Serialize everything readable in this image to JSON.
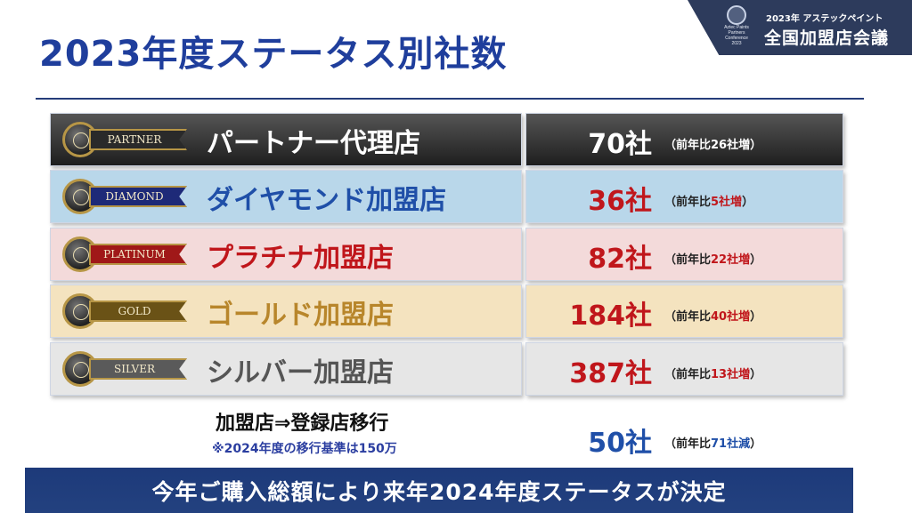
{
  "header": {
    "logo_lines": [
      "Aztec Paints",
      "Partners Conference",
      "2023"
    ],
    "subtitle": "2023年 アステックペイント",
    "event_title": "全国加盟店会議"
  },
  "title": "2023年度ステータス別社数",
  "rows": [
    {
      "badge": "PARTNER",
      "label": "パートナー代理店",
      "count": "70社",
      "note_prefix": "（前年比",
      "note_change": "26社増",
      "note_suffix": "）",
      "colors": {
        "left_bg": "#3a3a3a",
        "right_bg": "#3a3a3a",
        "label": "#ffffff",
        "count": "#ffffff",
        "note": "#ffffff",
        "note_change": "#ffffff",
        "plate_bg": "#2a2a2a"
      }
    },
    {
      "badge": "DIAMOND",
      "label": "ダイヤモンド加盟店",
      "count": "36社",
      "note_prefix": "（前年比",
      "note_change": "5社増",
      "note_suffix": "）",
      "colors": {
        "left_bg": "#b9d7ea",
        "right_bg": "#b9d7ea",
        "label": "#1f4fa8",
        "count": "#c0161b",
        "note": "#222222",
        "note_change": "#c0161b",
        "plate_bg": "#1e2a78"
      }
    },
    {
      "badge": "PLATINUM",
      "label": "プラチナ加盟店",
      "count": "82社",
      "note_prefix": "（前年比",
      "note_change": "22社増",
      "note_suffix": "）",
      "colors": {
        "left_bg": "#f3dada",
        "right_bg": "#f3dada",
        "label": "#c0161b",
        "count": "#c0161b",
        "note": "#222222",
        "note_change": "#c0161b",
        "plate_bg": "#a01818"
      }
    },
    {
      "badge": "GOLD",
      "label": "ゴールド加盟店",
      "count": "184社",
      "note_prefix": "（前年比",
      "note_change": "40社増",
      "note_suffix": "）",
      "colors": {
        "left_bg": "#f4e3bf",
        "right_bg": "#f4e3bf",
        "label": "#b8862b",
        "count": "#c0161b",
        "note": "#222222",
        "note_change": "#c0161b",
        "plate_bg": "#6a5216"
      }
    },
    {
      "badge": "SILVER",
      "label": "シルバー加盟店",
      "count": "387社",
      "note_prefix": "（前年比",
      "note_change": "13社増",
      "note_suffix": "）",
      "colors": {
        "left_bg": "#e6e6e6",
        "right_bg": "#e6e6e6",
        "label": "#555555",
        "count": "#c0161b",
        "note": "#222222",
        "note_change": "#c0161b",
        "plate_bg": "#5a5a5a"
      }
    }
  ],
  "transfer": {
    "title": "加盟店⇒登録店移行",
    "note": "※2024年度の移行基準は150万",
    "count": "50社",
    "note_prefix": "（前年比",
    "note_change": "71社減",
    "note_suffix": "）",
    "colors": {
      "count": "#1f4fa8",
      "note_change": "#1f4fa8"
    }
  },
  "footer": "今年ご購入総額により来年2024年度ステータスが決定"
}
